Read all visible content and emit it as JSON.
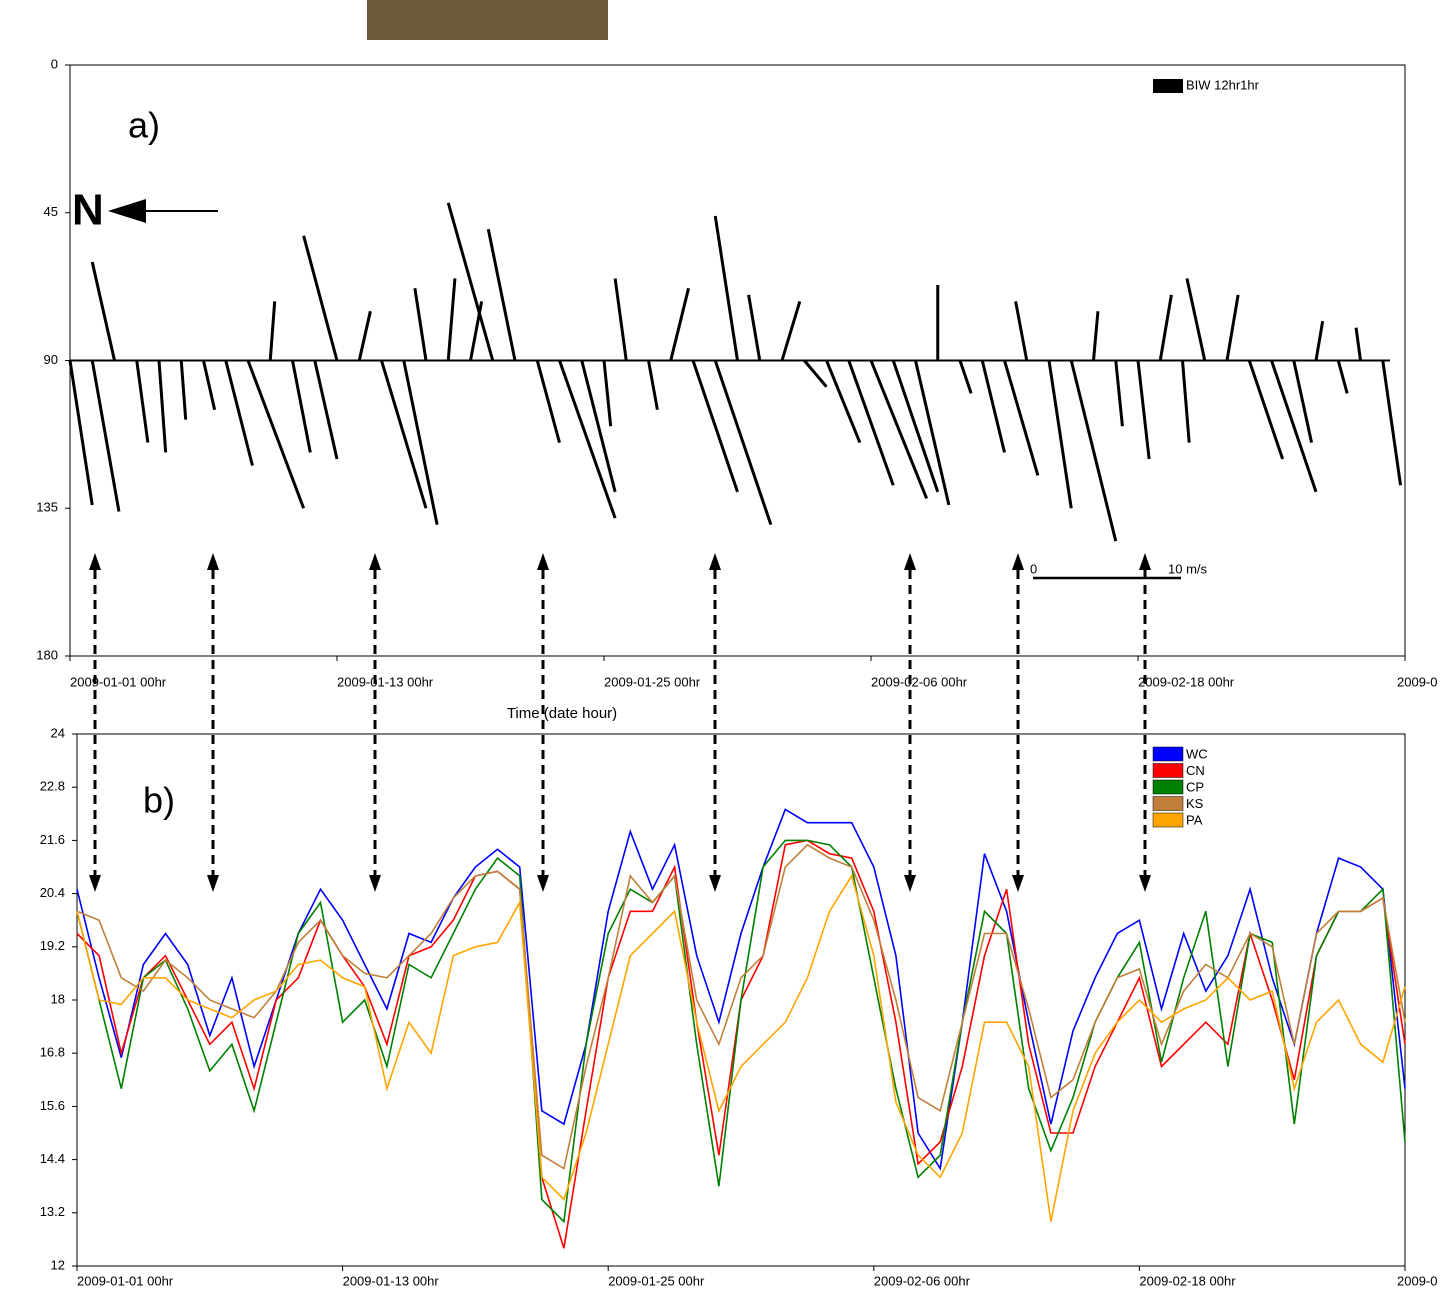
{
  "chart_data": [
    {
      "type": "stick",
      "label": "a)",
      "north": "N",
      "x_label": "Time (date hour)",
      "ylim": [
        180,
        0
      ],
      "yticks": [
        0,
        45,
        90,
        135,
        180
      ],
      "xlim": [
        0,
        60
      ],
      "xticks": [
        {
          "value": 0,
          "label": "2009-01-01 00hr"
        },
        {
          "value": 12,
          "label": "2009-01-13 00hr"
        },
        {
          "value": 24,
          "label": "2009-01-25 00hr"
        },
        {
          "value": 36,
          "label": "2009-02-06 00hr"
        },
        {
          "value": 48,
          "label": "2009-02-18 00hr"
        },
        {
          "value": 60,
          "label": "2009-0"
        }
      ],
      "baseline": 90,
      "scale_labels": [
        "0",
        "10 m/s"
      ],
      "series": [
        {
          "name": "BIW 12hr1hr",
          "color": "#000000",
          "x": [
            0,
            1,
            2,
            3,
            4,
            5,
            6,
            7,
            8,
            9,
            10,
            11,
            12,
            13,
            14,
            15,
            16,
            17,
            18,
            19,
            20,
            21,
            22,
            23,
            24,
            25,
            26,
            27,
            28,
            29,
            30,
            31,
            32,
            33,
            34,
            35,
            36,
            37,
            38,
            39,
            40,
            41,
            42,
            43,
            44,
            45,
            46,
            47,
            48,
            49,
            50,
            51,
            52,
            53,
            54,
            55,
            56,
            57,
            58,
            59
          ],
          "u": [
            1.0,
            1.2,
            -1.0,
            0.5,
            0.3,
            0.2,
            0.5,
            1.2,
            2.5,
            0.2,
            0.8,
            1.0,
            -1.5,
            0.5,
            2.0,
            1.5,
            -0.5,
            0.3,
            0.5,
            -2.0,
            -1.2,
            1.0,
            2.5,
            1.5,
            0.3,
            -0.5,
            0.4,
            0.8,
            2.0,
            2.5,
            -1.0,
            -0.5,
            0.8,
            1.0,
            1.5,
            2.0,
            2.5,
            2.0,
            1.5,
            0.0,
            0.5,
            1.0,
            1.5,
            -0.5,
            1.0,
            2.0,
            0.2,
            0.3,
            0.5,
            0.5,
            0.3,
            -0.8,
            0.5,
            1.5,
            2.0,
            0.8,
            0.3,
            0.4,
            -0.2,
            0.8
          ],
          "v": [
            44,
            46,
            -30,
            25,
            28,
            18,
            15,
            32,
            45,
            -18,
            28,
            30,
            -38,
            -15,
            45,
            50,
            -22,
            -25,
            -18,
            -48,
            -40,
            25,
            48,
            40,
            20,
            -25,
            15,
            -22,
            40,
            50,
            -44,
            -20,
            -18,
            8,
            25,
            38,
            42,
            40,
            44,
            -23,
            10,
            28,
            35,
            -18,
            45,
            55,
            -15,
            20,
            30,
            -20,
            25,
            -25,
            -20,
            30,
            40,
            25,
            -12,
            10,
            -10,
            38
          ]
        }
      ]
    },
    {
      "type": "line",
      "label": "b)",
      "ylim": [
        12,
        24
      ],
      "yticks": [
        12,
        13.2,
        14.4,
        15.6,
        16.8,
        18,
        19.2,
        20.4,
        21.6,
        22.8,
        24
      ],
      "xlim": [
        0,
        60
      ],
      "xticks": [
        {
          "value": 0,
          "label": "2009-01-01 00hr"
        },
        {
          "value": 12,
          "label": "2009-01-13 00hr"
        },
        {
          "value": 24,
          "label": "2009-01-25 00hr"
        },
        {
          "value": 36,
          "label": "2009-02-06 00hr"
        },
        {
          "value": 48,
          "label": "2009-02-18 00hr"
        },
        {
          "value": 60,
          "label": "2009-0"
        }
      ],
      "x": [
        0,
        1,
        2,
        3,
        4,
        5,
        6,
        7,
        8,
        9,
        10,
        11,
        12,
        13,
        14,
        15,
        16,
        17,
        18,
        19,
        20,
        21,
        22,
        23,
        24,
        25,
        26,
        27,
        28,
        29,
        30,
        31,
        32,
        33,
        34,
        35,
        36,
        37,
        38,
        39,
        40,
        41,
        42,
        43,
        44,
        45,
        46,
        47,
        48,
        49,
        50,
        51,
        52,
        53,
        54,
        55,
        56,
        57,
        58,
        59,
        60
      ],
      "series": [
        {
          "name": "WC",
          "color": "#0000ff",
          "values": [
            20.5,
            18.5,
            16.7,
            18.8,
            19.5,
            18.8,
            17.2,
            18.5,
            16.5,
            18.0,
            19.5,
            20.5,
            19.8,
            18.8,
            17.8,
            19.5,
            19.3,
            20.3,
            21.0,
            21.4,
            21.0,
            15.5,
            15.2,
            17.0,
            20.0,
            21.8,
            20.5,
            21.5,
            19.0,
            17.5,
            19.5,
            21.0,
            22.3,
            22.0,
            22.0,
            22.0,
            21.0,
            19.0,
            15.0,
            14.2,
            17.5,
            21.3,
            20.0,
            17.5,
            15.2,
            17.3,
            18.5,
            19.5,
            19.8,
            17.8,
            19.5,
            18.2,
            19.0,
            20.5,
            18.5,
            17.0,
            19.5,
            21.2,
            21.0,
            20.5,
            16.0
          ]
        },
        {
          "name": "CN",
          "color": "#ff0000",
          "values": [
            19.5,
            19.0,
            16.8,
            18.5,
            19.0,
            18.0,
            17.0,
            17.5,
            16.0,
            18.0,
            18.5,
            19.8,
            19.0,
            18.3,
            17.0,
            19.0,
            19.2,
            19.8,
            20.8,
            20.9,
            20.5,
            14.0,
            12.4,
            15.5,
            18.5,
            20.0,
            20.0,
            21.0,
            17.5,
            14.5,
            18.0,
            19.0,
            21.5,
            21.6,
            21.3,
            21.2,
            20.0,
            17.5,
            14.3,
            14.8,
            16.5,
            19.0,
            20.5,
            17.0,
            15.0,
            15.0,
            16.5,
            17.5,
            18.5,
            16.5,
            17.0,
            17.5,
            17.0,
            19.5,
            18.0,
            16.2,
            19.0,
            20.0,
            20.0,
            20.3,
            17.0
          ]
        },
        {
          "name": "CP",
          "color": "#008000",
          "values": [
            20.0,
            18.0,
            16.0,
            18.5,
            18.9,
            17.8,
            16.4,
            17.0,
            15.5,
            17.5,
            19.5,
            20.2,
            17.5,
            18.0,
            16.5,
            18.8,
            18.5,
            19.5,
            20.5,
            21.2,
            20.8,
            13.5,
            13.0,
            17.0,
            19.5,
            20.5,
            20.2,
            20.8,
            17.0,
            13.8,
            18.0,
            21.0,
            21.6,
            21.6,
            21.5,
            21.0,
            18.5,
            16.0,
            14.0,
            14.5,
            17.5,
            20.0,
            19.5,
            16.0,
            14.6,
            15.8,
            17.5,
            18.5,
            19.3,
            16.6,
            18.5,
            20.0,
            16.5,
            19.5,
            19.3,
            15.2,
            19.0,
            20.0,
            20.0,
            20.5,
            14.8
          ]
        },
        {
          "name": "KS",
          "color": "#c0803c",
          "values": [
            20.0,
            19.8,
            18.5,
            18.2,
            18.9,
            18.5,
            18.0,
            17.8,
            17.6,
            18.2,
            19.3,
            19.8,
            19.0,
            18.6,
            18.5,
            19.0,
            19.5,
            20.3,
            20.8,
            20.9,
            20.5,
            14.5,
            14.2,
            16.5,
            18.5,
            20.8,
            20.2,
            20.8,
            18.0,
            17.0,
            18.5,
            19.0,
            21.0,
            21.5,
            21.2,
            21.0,
            19.8,
            18.0,
            15.8,
            15.5,
            17.5,
            19.5,
            19.5,
            17.8,
            15.8,
            16.2,
            17.5,
            18.5,
            18.7,
            17.0,
            18.2,
            18.8,
            18.5,
            19.5,
            19.2,
            17.0,
            19.5,
            20.0,
            20.0,
            20.3,
            17.5
          ]
        },
        {
          "name": "PA",
          "color": "#ffa500",
          "values": [
            20.0,
            18.0,
            17.9,
            18.5,
            18.5,
            18.0,
            17.8,
            17.6,
            18.0,
            18.2,
            18.8,
            18.9,
            18.5,
            18.3,
            16.0,
            17.5,
            16.8,
            19.0,
            19.2,
            19.3,
            20.2,
            14.0,
            13.5,
            15.0,
            17.0,
            19.0,
            19.5,
            20.0,
            17.5,
            15.5,
            16.5,
            17.0,
            17.5,
            18.5,
            20.0,
            20.8,
            19.0,
            15.7,
            14.5,
            14.0,
            15.0,
            17.5,
            17.5,
            16.5,
            13.0,
            15.5,
            16.8,
            17.5,
            18.0,
            17.5,
            17.8,
            18.0,
            18.5,
            18.0,
            18.2,
            16.0,
            17.5,
            18.0,
            17.0,
            16.6,
            18.3
          ]
        }
      ]
    }
  ]
}
